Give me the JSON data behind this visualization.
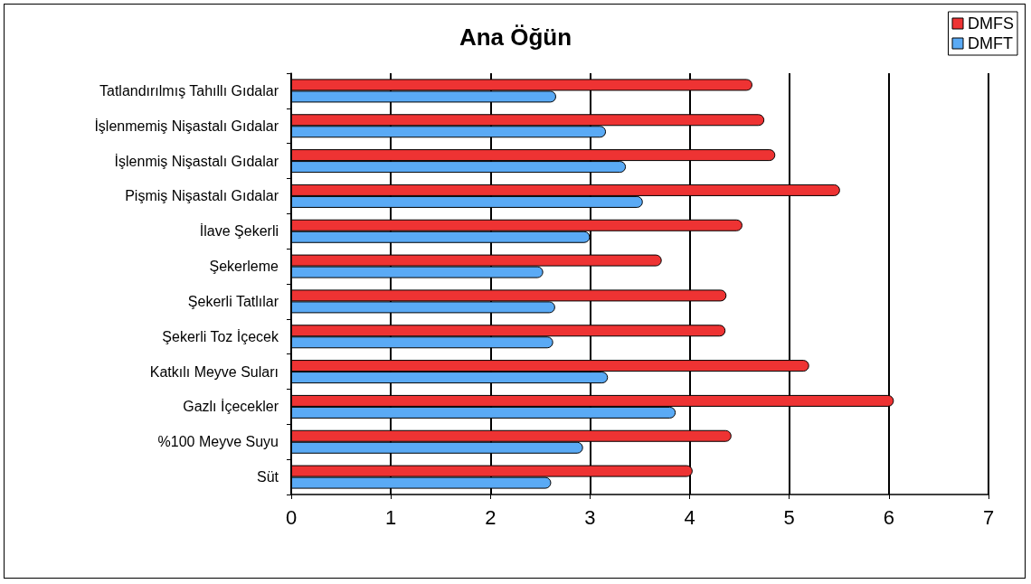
{
  "chart_data": {
    "type": "bar",
    "orientation": "horizontal",
    "title": "Ana Öğün",
    "categories": [
      "Tatlandırılmış Tahıllı Gıdalar",
      "İşlenmemiş Nişastalı Gıdalar",
      "İşlenmiş Nişastalı Gıdalar",
      "Pişmiş Nişastalı Gıdalar",
      "İlave Şekerli",
      "Şekerleme",
      "Şekerli Tatlılar",
      "Şekerli Toz İçecek",
      "Katkılı Meyve Suları",
      "Gazlı İçecekler",
      "%100 Meyve Suyu",
      "Süt"
    ],
    "series": [
      {
        "name": "DMFS",
        "color": "#ee3333",
        "values": [
          4.63,
          4.75,
          4.86,
          5.51,
          4.53,
          3.72,
          4.37,
          4.36,
          5.2,
          6.05,
          4.42,
          4.03
        ]
      },
      {
        "name": "DMFT",
        "color": "#5aaaf5",
        "values": [
          2.66,
          3.16,
          3.36,
          3.53,
          3.0,
          2.53,
          2.65,
          2.63,
          3.18,
          3.86,
          2.93,
          2.61
        ]
      }
    ],
    "xlim": [
      0,
      7
    ],
    "xticks": [
      0,
      1,
      2,
      3,
      4,
      5,
      6,
      7
    ],
    "grid": "x",
    "legend": "top right"
  }
}
